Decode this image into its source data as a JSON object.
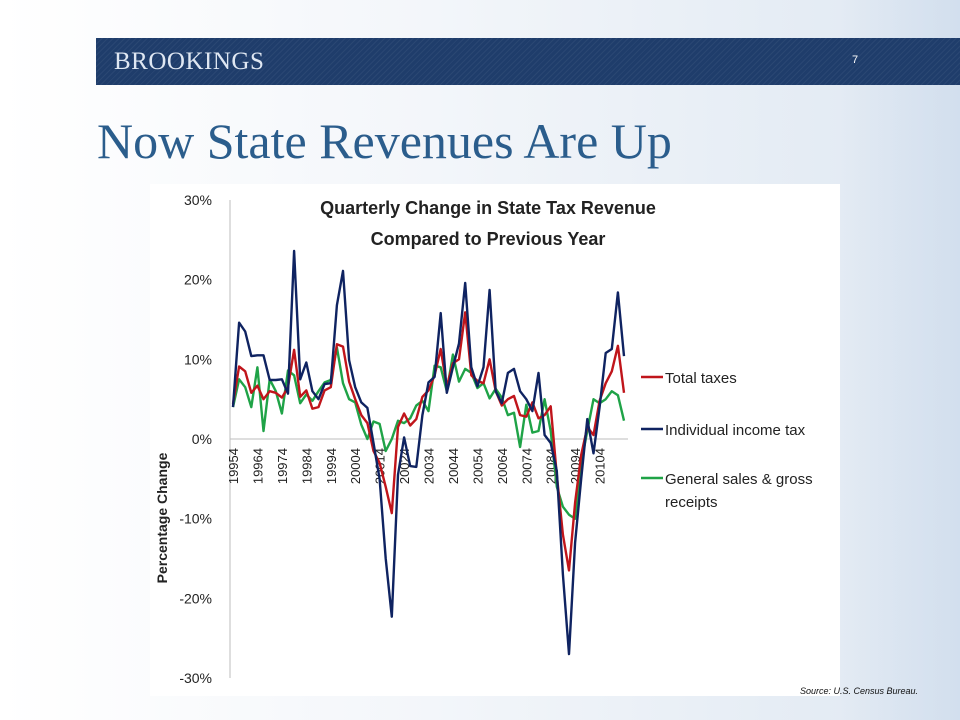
{
  "brand": "BROOKINGS",
  "page_number": "7",
  "slide_title": "Now State Revenues Are Up",
  "source_note": "Source: U.S. Census Bureau.",
  "chart_data": {
    "type": "line",
    "title_lines": [
      "Quarterly Change in State Tax Revenue",
      "Compared to Previous Year"
    ],
    "ylabel": "Percentage Change",
    "xlabel": "",
    "ylim": [
      -30,
      30
    ],
    "yticks": [
      30,
      20,
      10,
      0,
      -10,
      -20,
      -30
    ],
    "ytick_labels": [
      "30%",
      "20%",
      "10%",
      "0%",
      "-10%",
      "-20%",
      "-30%"
    ],
    "x_tick_labels": [
      "19954",
      "19964",
      "19974",
      "19984",
      "19994",
      "20004",
      "20014",
      "20024",
      "20034",
      "20044",
      "20054",
      "20064",
      "20074",
      "20084",
      "20094",
      "20104"
    ],
    "grid": false,
    "legend_position": "right",
    "series": [
      {
        "name": "Total taxes",
        "color": "#c0151b",
        "values": [
          4.4,
          9.1,
          8.5,
          5.8,
          6.7,
          5.0,
          6.0,
          5.8,
          5.2,
          6.5,
          11.2,
          5.3,
          6.1,
          3.8,
          4.0,
          6.1,
          6.5,
          11.9,
          11.6,
          7.2,
          5.0,
          3.0,
          2.0,
          -1.5,
          -3.0,
          -6.0,
          -9.3,
          1.5,
          3.2,
          1.7,
          2.5,
          5.3,
          6.1,
          8.0,
          11.3,
          6.6,
          9.5,
          10.0,
          15.9,
          8.0,
          7.3,
          7.0,
          10.0,
          6.0,
          4.2,
          5.0,
          5.4,
          3.0,
          2.8,
          4.6,
          2.6,
          3.0,
          4.1,
          -4.5,
          -12.0,
          -16.5,
          -8.0,
          -2.0,
          1.5,
          0.5,
          4.8,
          7.0,
          8.5,
          11.7,
          5.8
        ]
      },
      {
        "name": "Individual income tax",
        "color": "#0f2361",
        "values": [
          4.0,
          14.6,
          13.5,
          10.4,
          10.5,
          10.5,
          7.4,
          7.4,
          7.5,
          5.7,
          23.6,
          7.5,
          9.6,
          6.0,
          5.0,
          6.9,
          7.0,
          16.8,
          21.1,
          9.9,
          6.5,
          4.6,
          3.9,
          -0.5,
          -5.0,
          -15.0,
          -22.3,
          -4.5,
          0.2,
          -3.4,
          -3.5,
          3.0,
          7.1,
          7.8,
          15.8,
          5.8,
          9.0,
          12.0,
          19.6,
          9.0,
          6.6,
          9.0,
          18.7,
          6.0,
          4.5,
          8.3,
          8.8,
          6.0,
          5.0,
          3.5,
          8.3,
          0.5,
          -0.5,
          -4.0,
          -17.0,
          -27.0,
          -13.0,
          -5.0,
          2.5,
          -1.8,
          4.0,
          10.8,
          11.3,
          18.4,
          10.4
        ]
      },
      {
        "name": "General sales & gross receipts",
        "color": "#1fa347",
        "values": [
          4.0,
          7.5,
          6.5,
          4.0,
          9.0,
          1.0,
          7.5,
          6.0,
          3.2,
          8.6,
          8.0,
          4.5,
          5.6,
          4.8,
          6.0,
          7.1,
          7.4,
          11.5,
          7.0,
          5.0,
          4.6,
          1.8,
          0.0,
          2.2,
          1.9,
          -1.5,
          0.0,
          2.3,
          2.0,
          2.6,
          4.2,
          4.8,
          3.5,
          9.2,
          9.0,
          6.0,
          10.6,
          7.2,
          8.8,
          8.3,
          6.4,
          7.0,
          5.1,
          6.3,
          5.2,
          3.0,
          3.3,
          -1.0,
          4.3,
          0.8,
          1.0,
          5.0,
          1.0,
          -6.0,
          -8.5,
          -9.5,
          -10.0,
          -3.0,
          1.0,
          5.0,
          4.5,
          5.0,
          6.0,
          5.5,
          2.3
        ]
      }
    ]
  }
}
